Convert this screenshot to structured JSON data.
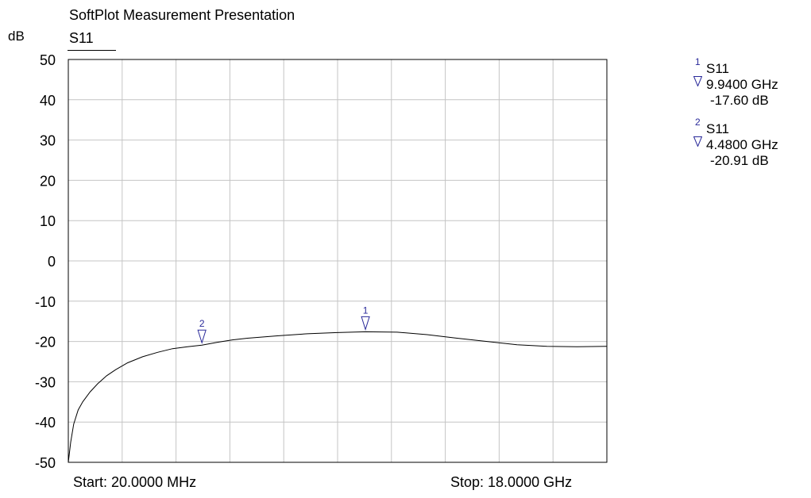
{
  "chart_data": {
    "type": "line",
    "title": "SoftPlot Measurement Presentation",
    "ylabel": "dB",
    "series_label": "S11",
    "ylim": [
      -50,
      50
    ],
    "yticks": [
      "50",
      "40",
      "30",
      "20",
      "10",
      "0",
      "-10",
      "-20",
      "-30",
      "-40",
      "-50"
    ],
    "xlim_ghz": [
      0.02,
      18.0
    ],
    "start_label": "Start: 20.0000 MHz",
    "stop_label": "Stop: 18.0000 GHz",
    "grid": true,
    "series": [
      {
        "name": "S11",
        "color": "#000000",
        "x_ghz": [
          0.02,
          0.1,
          0.2,
          0.35,
          0.5,
          0.75,
          1.0,
          1.3,
          1.6,
          2.0,
          2.5,
          3.0,
          3.5,
          4.0,
          4.48,
          5.0,
          5.5,
          6.0,
          7.0,
          8.0,
          9.0,
          9.94,
          11.0,
          12.0,
          13.0,
          14.0,
          15.0,
          16.0,
          17.0,
          18.0
        ],
        "y_db": [
          -50.0,
          -45.0,
          -40.5,
          -37.0,
          -35.0,
          -32.5,
          -30.5,
          -28.5,
          -27.0,
          -25.3,
          -23.8,
          -22.7,
          -21.8,
          -21.3,
          -20.91,
          -20.2,
          -19.6,
          -19.2,
          -18.6,
          -18.1,
          -17.8,
          -17.6,
          -17.7,
          -18.3,
          -19.2,
          -20.0,
          -20.8,
          -21.2,
          -21.3,
          -21.2
        ]
      }
    ],
    "markers": [
      {
        "id": "1",
        "series": "S11",
        "freq_label": "9.9400 GHz",
        "value_label": "-17.60 dB",
        "x_ghz": 9.94,
        "y_db": -17.6
      },
      {
        "id": "2",
        "series": "S11",
        "freq_label": "4.4800 GHz",
        "value_label": "-20.91 dB",
        "x_ghz": 4.48,
        "y_db": -20.91
      }
    ],
    "marker_color": "#2a2a9a"
  }
}
